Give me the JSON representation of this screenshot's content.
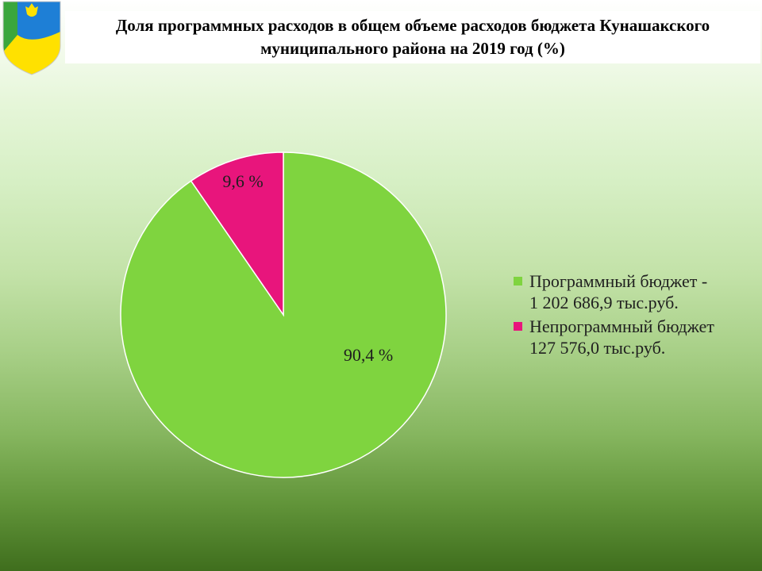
{
  "title": {
    "line1": "Доля программных расходов в общем объеме расходов бюджета Кунашакского",
    "line2": "муниципального района на 2019 год (%)"
  },
  "colors": {
    "program": "#7fd43f",
    "nonprogram": "#e8157c",
    "emblem_blue": "#1e7fd6",
    "emblem_green": "#3aa63c",
    "emblem_yellow": "#ffe100"
  },
  "chart_data": {
    "type": "pie",
    "title": "Доля программных расходов в общем объеме расходов бюджета Кунашакского муниципального района на 2019 год (%)",
    "slices": [
      {
        "key": "program",
        "value": 90.4,
        "label": "90,4 %",
        "legend_line1": "Программный бюджет -",
        "legend_line2": "1 202 686,9 тыс.руб."
      },
      {
        "key": "nonprogram",
        "value": 9.6,
        "label": "9,6 %",
        "legend_line1": "Непрограммный бюджет",
        "legend_line2": "127  576,0 тыс.руб."
      }
    ],
    "start_angle_deg": 0,
    "direction": "clockwise",
    "legend_position": "right"
  }
}
